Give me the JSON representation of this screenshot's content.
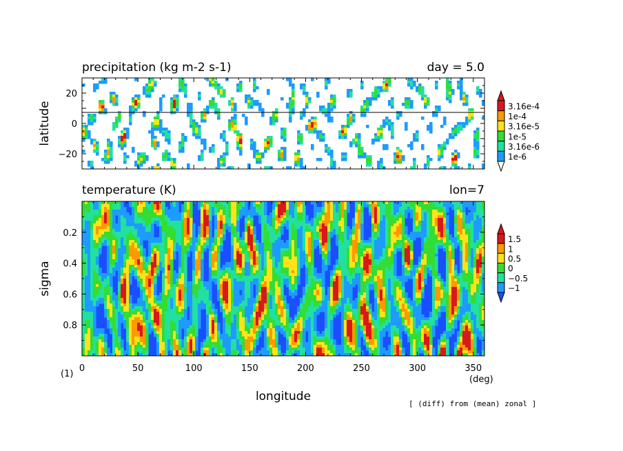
{
  "figure": {
    "label": "(1)",
    "footer": "[ (diff) from (mean) zonal ]",
    "xlabel": "longitude",
    "xunit": "(deg)",
    "xticks": [
      "0",
      "50",
      "100",
      "150",
      "200",
      "250",
      "300",
      "350"
    ]
  },
  "chart_data": [
    {
      "type": "heatmap",
      "title": "precipitation (kg m-2 s-1)",
      "subtitle": "day = 5.0",
      "xlabel": "longitude",
      "ylabel": "latitude",
      "xlim": [
        0,
        360
      ],
      "ylim": [
        -30,
        30
      ],
      "yscale": "linear",
      "yticks": [
        "20",
        "0",
        "−20"
      ],
      "yvalues": [
        20,
        0,
        -20
      ],
      "reference_line_lat": 7,
      "colorbar": {
        "scale": "log",
        "levels": [
          "3.16e-4",
          "1e-4",
          "3.16e-5",
          "1e-5",
          "3.16e-6",
          "1e-6"
        ],
        "colors": [
          "#d7191c",
          "#ff9900",
          "#ffe31a",
          "#33dd33",
          "#22e0a0",
          "#1e9bff"
        ],
        "below_color": "#ffffff"
      },
      "contour_bands": [
        "<1e-6",
        "1e-6..3.16e-6",
        "3.16e-6..1e-5",
        "1e-5..3.16e-5",
        "3.16e-5..1e-4",
        "1e-4..3.16e-4",
        ">3.16e-4"
      ],
      "band_colors": [
        "#ffffff",
        "#1e9bff",
        "#22e0a0",
        "#33dd33",
        "#ffe31a",
        "#ff9900",
        "#d7191c"
      ],
      "grid": false
    },
    {
      "type": "heatmap",
      "title": "temperature (K)",
      "subtitle": "lon=7",
      "xlabel": "longitude",
      "ylabel": "sigma",
      "xlim": [
        0,
        360
      ],
      "ylim": [
        1.0,
        0.0
      ],
      "yticks": [
        "0.2",
        "0.4",
        "0.6",
        "0.8"
      ],
      "yvalues": [
        0.2,
        0.4,
        0.6,
        0.8
      ],
      "colorbar": {
        "levels": [
          "1.5",
          "1",
          "0.5",
          "0",
          "−0.5",
          "−1"
        ],
        "colors": [
          "#d7191c",
          "#ff9900",
          "#ffe31a",
          "#33dd33",
          "#22e0a0",
          "#1e9bff"
        ]
      },
      "contour_bands": [
        "<-1",
        "-1..-0.5",
        "-0.5..0",
        "0..0.5",
        "0.5..1",
        "1..1.5",
        ">1.5"
      ],
      "band_colors": [
        "#1a4fff",
        "#1e9bff",
        "#22e0a0",
        "#33dd33",
        "#ffe31a",
        "#ff9900",
        "#d7191c"
      ],
      "grid": false
    }
  ]
}
